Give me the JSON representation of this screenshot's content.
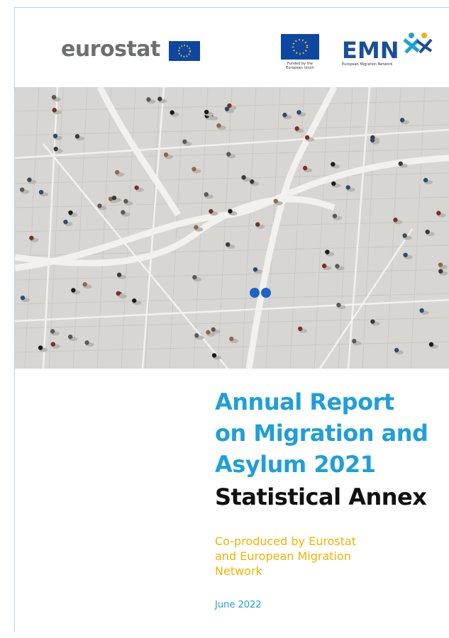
{
  "header": {
    "eurostat_logo": "eurostat",
    "funding_note": [
      "Funded by the",
      "European Union"
    ],
    "emn_logo": "EMN",
    "emn_caption": "European Migration Network"
  },
  "cover": {
    "title": [
      "Annual Report",
      "on Migration and",
      "Asylum 2021"
    ],
    "subtitle": "Statistical Annex",
    "coproduced": [
      "Co-produced by Eurostat",
      "and European Migration",
      "Network"
    ],
    "date": "June 2022"
  }
}
